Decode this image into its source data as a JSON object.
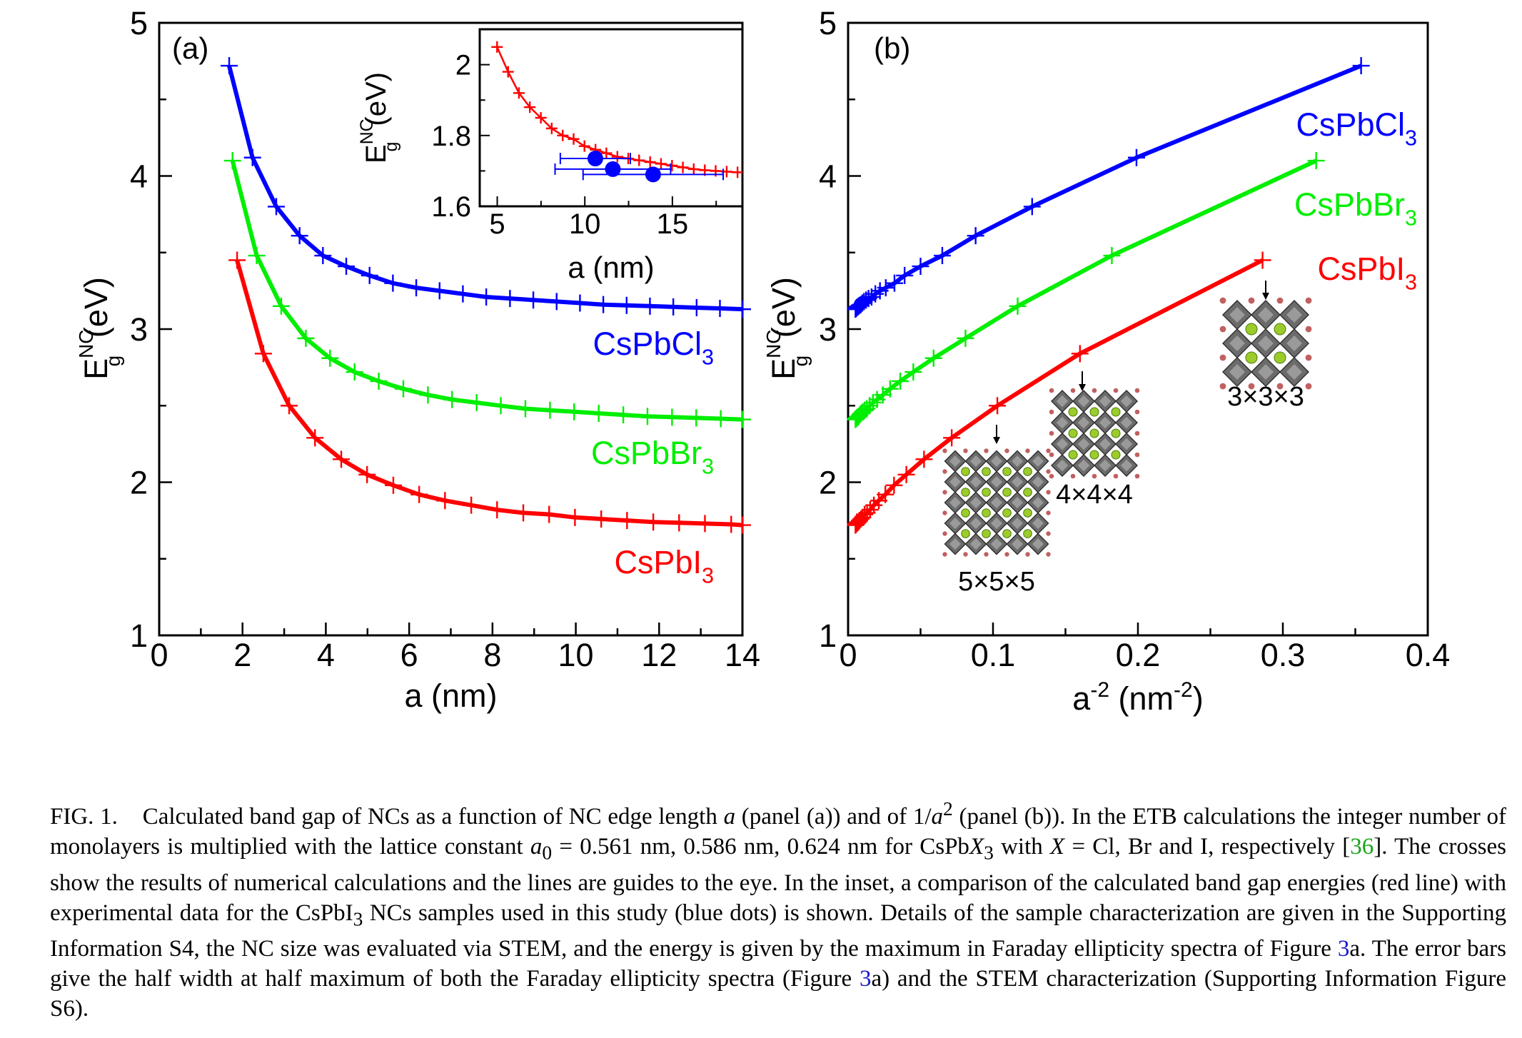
{
  "colors": {
    "cl": "#0000ff",
    "br": "#00ee00",
    "i": "#ff0000",
    "exp": "#0000ff"
  },
  "chart_data": [
    {
      "type": "line",
      "panel_label": "(a)",
      "xlabel": "a (nm)",
      "ylabel_main": "E",
      "ylabel_sub": "g",
      "ylabel_sup": "NC",
      "ylabel_unit": "(eV)",
      "xlim": [
        0,
        14
      ],
      "ylim": [
        1,
        5
      ],
      "xticks": [
        "0",
        "2",
        "4",
        "6",
        "8",
        "10",
        "12",
        "14"
      ],
      "yticks": [
        "1",
        "2",
        "3",
        "4",
        "5"
      ],
      "grid": false,
      "series": [
        {
          "name": "CsPbCl",
          "subscript": "3",
          "key": "cl",
          "x": [
            1.68,
            2.24,
            2.81,
            3.37,
            3.93,
            4.49,
            5.05,
            5.61,
            6.17,
            6.73,
            7.29,
            7.85,
            8.42,
            8.98,
            9.54,
            10.1,
            10.66,
            11.22,
            11.78,
            12.34,
            12.9,
            13.46,
            14.0
          ],
          "y": [
            4.72,
            4.12,
            3.8,
            3.61,
            3.48,
            3.41,
            3.35,
            3.3,
            3.27,
            3.25,
            3.23,
            3.21,
            3.2,
            3.19,
            3.18,
            3.17,
            3.16,
            3.155,
            3.15,
            3.145,
            3.14,
            3.135,
            3.13
          ]
        },
        {
          "name": "CsPbBr",
          "subscript": "3",
          "key": "br",
          "x": [
            1.76,
            2.34,
            2.93,
            3.52,
            4.1,
            4.69,
            5.27,
            5.86,
            6.45,
            7.03,
            7.62,
            8.2,
            8.79,
            9.38,
            9.96,
            10.55,
            11.14,
            11.72,
            12.31,
            12.89,
            13.48,
            14.0
          ],
          "y": [
            4.1,
            3.48,
            3.15,
            2.94,
            2.81,
            2.72,
            2.66,
            2.61,
            2.57,
            2.54,
            2.52,
            2.5,
            2.48,
            2.47,
            2.46,
            2.45,
            2.44,
            2.43,
            2.425,
            2.42,
            2.415,
            2.41
          ]
        },
        {
          "name": "CsPbI",
          "subscript": "3",
          "key": "i",
          "x": [
            1.87,
            2.5,
            3.12,
            3.74,
            4.37,
            4.99,
            5.62,
            6.24,
            6.86,
            7.49,
            8.11,
            8.74,
            9.36,
            9.98,
            10.61,
            11.23,
            11.86,
            12.48,
            13.1,
            13.73,
            14.0
          ],
          "y": [
            3.45,
            2.84,
            2.5,
            2.29,
            2.15,
            2.05,
            1.98,
            1.92,
            1.88,
            1.85,
            1.82,
            1.8,
            1.79,
            1.77,
            1.76,
            1.75,
            1.74,
            1.735,
            1.73,
            1.725,
            1.72
          ]
        }
      ],
      "inset": {
        "type": "line",
        "xlabel": "a (nm)",
        "xlim": [
          4,
          19
        ],
        "ylim": [
          1.6,
          2.1
        ],
        "xticks": [
          "5",
          "10",
          "15"
        ],
        "yticks": [
          "1.6",
          "1.8",
          "2"
        ],
        "series": [
          {
            "name": "CsPbI",
            "key": "i",
            "x": [
              4.99,
              5.62,
              6.24,
              6.86,
              7.49,
              8.11,
              8.74,
              9.36,
              9.98,
              10.61,
              11.23,
              11.86,
              12.48,
              13.1,
              13.73,
              14.35,
              14.98,
              15.6,
              16.22,
              16.85,
              17.47,
              18.1,
              18.72
            ],
            "y": [
              2.05,
              1.98,
              1.92,
              1.88,
              1.85,
              1.82,
              1.8,
              1.79,
              1.77,
              1.76,
              1.75,
              1.74,
              1.735,
              1.73,
              1.725,
              1.72,
              1.715,
              1.71,
              1.705,
              1.702,
              1.7,
              1.698,
              1.696
            ]
          },
          {
            "name": "experiment",
            "key": "exp",
            "points": [
              {
                "x": 10.6,
                "y": 1.735,
                "xerr": 2.0,
                "yerr": 0.02
              },
              {
                "x": 11.6,
                "y": 1.705,
                "xerr": 3.3,
                "yerr": 0.02
              },
              {
                "x": 13.9,
                "y": 1.69,
                "xerr": 4.0,
                "yerr": 0.02
              }
            ]
          }
        ]
      }
    },
    {
      "type": "line",
      "panel_label": "(b)",
      "xlabel_base": "a",
      "xlabel_exp": "-2",
      "xlabel_unit": " (nm",
      "xlabel_unit_exp": "-2",
      "xlabel_close": ")",
      "ylabel_main": "E",
      "ylabel_sub": "g",
      "ylabel_sup": "NC",
      "ylabel_unit": "(eV)",
      "xlim": [
        0,
        0.4
      ],
      "ylim": [
        1,
        5
      ],
      "xticks": [
        "0",
        "0.1",
        "0.2",
        "0.3",
        "0.4"
      ],
      "yticks": [
        "1",
        "2",
        "3",
        "4",
        "5"
      ],
      "grid": false,
      "series": [
        {
          "name": "CsPbCl",
          "subscript": "3",
          "key": "cl",
          "x": [
            0.354,
            0.199,
            0.127,
            0.088,
            0.065,
            0.05,
            0.039,
            0.032,
            0.026,
            0.022,
            0.0188,
            0.0162,
            0.0141,
            0.0124,
            0.011,
            0.0098,
            0.0088,
            0.0079,
            0.0072,
            0.0066,
            0.006,
            0.0055,
            0.0051
          ],
          "y": [
            4.72,
            4.12,
            3.8,
            3.61,
            3.48,
            3.41,
            3.35,
            3.3,
            3.27,
            3.25,
            3.23,
            3.21,
            3.2,
            3.19,
            3.18,
            3.17,
            3.16,
            3.155,
            3.15,
            3.145,
            3.14,
            3.135,
            3.13
          ]
        },
        {
          "name": "CsPbBr",
          "subscript": "3",
          "key": "br",
          "x": [
            0.323,
            0.182,
            0.117,
            0.081,
            0.059,
            0.045,
            0.036,
            0.029,
            0.024,
            0.02,
            0.0172,
            0.0149,
            0.0129,
            0.0114,
            0.0101,
            0.009,
            0.0081,
            0.0073,
            0.0066,
            0.006,
            0.0055,
            0.0051
          ],
          "y": [
            4.1,
            3.48,
            3.15,
            2.94,
            2.81,
            2.72,
            2.66,
            2.61,
            2.57,
            2.54,
            2.52,
            2.5,
            2.48,
            2.47,
            2.46,
            2.45,
            2.44,
            2.43,
            2.425,
            2.42,
            2.415,
            2.41
          ]
        },
        {
          "name": "CsPbI",
          "subscript": "3",
          "key": "i",
          "x": [
            0.286,
            0.16,
            0.103,
            0.0715,
            0.0524,
            0.0402,
            0.0317,
            0.0257,
            0.0212,
            0.0178,
            0.0152,
            0.0131,
            0.0114,
            0.01,
            0.0089,
            0.0079,
            0.0071,
            0.0064,
            0.0058,
            0.0053,
            0.0051
          ],
          "y": [
            3.45,
            2.84,
            2.5,
            2.29,
            2.15,
            2.05,
            1.98,
            1.92,
            1.88,
            1.85,
            1.82,
            1.8,
            1.79,
            1.77,
            1.76,
            1.75,
            1.74,
            1.735,
            1.73,
            1.725,
            1.72
          ]
        }
      ],
      "structures": [
        {
          "label": "3×3×3",
          "n": 3
        },
        {
          "label": "4×4×4",
          "n": 4
        },
        {
          "label": "5×5×5",
          "n": 5
        }
      ]
    }
  ],
  "caption": {
    "fig": "FIG. 1.",
    "p1": "Calculated band gap of NCs as a function of NC edge length ",
    "a_sym": "a",
    "p2": " (panel (a)) and of 1/",
    "a_sym2": "a",
    "exp2": "2",
    "p3": " (panel (b)). In the ETB calculations the integer number of monolayers is multiplied with the lattice constant ",
    "a0": "a",
    "a0_sub": "0",
    "p4": " = 0.561 nm, 0.586 nm, 0.624 nm for CsPb",
    "x_sym": "X",
    "x_sub": "3",
    "p5": " with ",
    "x_sym2": "X",
    "p6": " = Cl, Br and I, respectively [",
    "ref36": "36",
    "p7": "]. The crosses show the results of numerical calculations and the lines are guides to the eye. In the inset, a comparison of the calculated band gap energies (red line) with experimental data for the CsPbI",
    "i_sub": "3",
    "p8": " NCs samples used in this study (blue dots) is shown. Details of the sample characterization are given in the Supporting Information S4, the NC size was evaluated via STEM, and the energy is given by the maximum in Faraday ellipticity spectra of Figure ",
    "ref3a": "3",
    "p9": "a. The error bars give the half width at half maximum of both the Faraday ellipticity spectra (Figure ",
    "ref3b": "3",
    "p10": "a) and the STEM characterization (Supporting Information Figure S6)."
  }
}
